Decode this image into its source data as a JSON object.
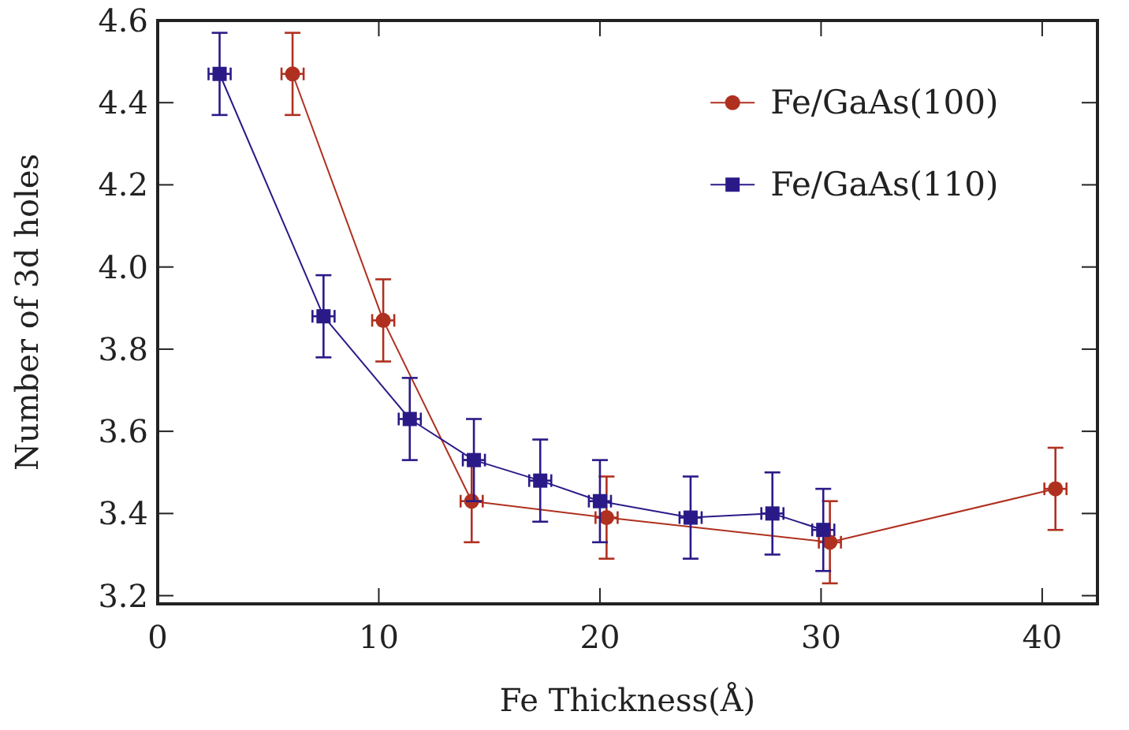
{
  "chart_data": {
    "type": "line",
    "xlabel": "Fe  Thickness(Å)",
    "ylabel": "Number  of  3d  holes",
    "xlim": [
      0,
      42.5
    ],
    "ylim": [
      3.18,
      4.6
    ],
    "xticks": [
      0,
      10,
      20,
      30,
      40
    ],
    "yticks": [
      3.2,
      3.4,
      3.6,
      3.8,
      {
        "value": 4,
        "label": "4.0"
      },
      4.2,
      4.4,
      4.6
    ],
    "legend": "top right",
    "line_style": "solid",
    "grid": false,
    "series": [
      {
        "name": "Fe/GaAs(100)",
        "color": "#b03020",
        "marker": "circle",
        "x": [
          6.1,
          10.2,
          14.2,
          20.3,
          30.4,
          40.6
        ],
        "values": [
          4.47,
          3.87,
          3.43,
          3.39,
          3.33,
          3.46
        ],
        "errors": [
          0.1,
          0.1,
          0.1,
          0.1,
          0.1,
          0.1
        ],
        "xerrors": [
          0.5,
          0.5,
          0.5,
          0.5,
          0.5,
          0.5
        ]
      },
      {
        "name": "Fe/GaAs(110)",
        "color": "#2a1a88",
        "marker": "square",
        "x": [
          2.8,
          7.5,
          11.4,
          14.3,
          17.3,
          20.0,
          24.1,
          27.8,
          30.1
        ],
        "values": [
          4.47,
          3.88,
          3.63,
          3.53,
          3.48,
          3.43,
          3.39,
          3.4,
          3.36
        ],
        "errors": [
          0.1,
          0.1,
          0.1,
          0.1,
          0.1,
          0.1,
          0.1,
          0.1,
          0.1
        ],
        "xerrors": [
          0.5,
          0.5,
          0.5,
          0.5,
          0.5,
          0.5,
          0.5,
          0.5,
          0.5
        ]
      }
    ]
  }
}
